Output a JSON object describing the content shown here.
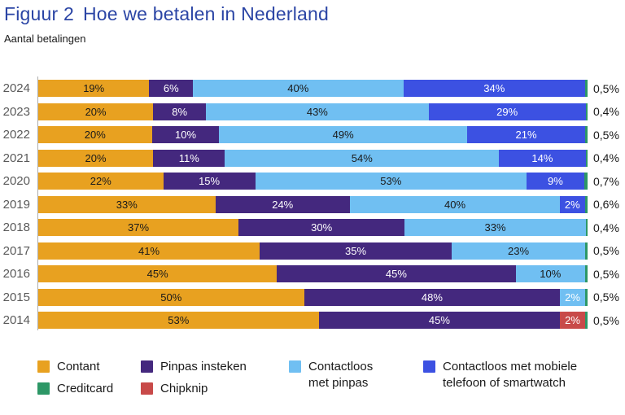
{
  "header": {
    "figure_label": "Figuur 2",
    "title": "Hoe we betalen in Nederland",
    "subtitle": "Aantal betalingen"
  },
  "colors": {
    "title_blue": "#2b45a5",
    "contant": "#e8a120",
    "pinpas_insteken": "#44287e",
    "contactloos_met_pinpas": "#70bff2",
    "contactloos_mobiel": "#3c51e2",
    "creditcard": "#2d9766",
    "chipknip": "#c84a49",
    "year_label": "#595959",
    "axis_line": "#adadad",
    "text_dark": "#1a1a1a"
  },
  "chart_data": {
    "type": "bar",
    "orientation": "horizontal",
    "stacked": true,
    "title": "Figuur 2 Hoe we betalen in Nederland",
    "ylabel_unit": "Aantal betalingen",
    "xlim": [
      0,
      100
    ],
    "value_suffix": "%",
    "grid": false,
    "categories": [
      "2024",
      "2023",
      "2022",
      "2021",
      "2020",
      "2019",
      "2018",
      "2017",
      "2016",
      "2015",
      "2014"
    ],
    "series": [
      {
        "key": "contant",
        "name": "Contant",
        "color": "#e8a120",
        "label_color": "#1a1a1a",
        "inside_labels": true,
        "values": [
          19,
          20,
          20,
          20,
          22,
          33,
          37,
          41,
          45,
          50,
          53
        ]
      },
      {
        "key": "pinpas-insteken",
        "name": "Pinpas insteken",
        "color": "#44287e",
        "label_color": "#ffffff",
        "inside_labels": true,
        "values": [
          6,
          8,
          10,
          11,
          15,
          24,
          30,
          35,
          45,
          48,
          45
        ]
      },
      {
        "key": "contactloos-met-pinpas",
        "name": "Contactloos met pinpas",
        "color": "#70bff2",
        "label_color": "#1a1a1a",
        "inside_labels": true,
        "values": [
          40,
          43,
          49,
          54,
          53,
          40,
          33,
          23,
          10,
          2,
          0
        ]
      },
      {
        "key": "contactloos-mobiel",
        "name": "Contactloos met mobiele telefoon of smartwatch",
        "color": "#3c51e2",
        "label_color": "#ffffff",
        "inside_labels": true,
        "values": [
          34,
          29,
          21,
          14,
          9,
          2,
          0,
          0,
          0,
          0,
          0
        ]
      },
      {
        "key": "chipknip",
        "name": "Chipknip",
        "color": "#c84a49",
        "label_color": "#ffffff",
        "inside_labels": true,
        "values": [
          0,
          0,
          0,
          0,
          0,
          0,
          0,
          0,
          0,
          0,
          2
        ]
      },
      {
        "key": "creditcard",
        "name": "Creditcard",
        "color": "#2d9766",
        "label_color": "#ffffff",
        "inside_labels": false,
        "values": [
          0.5,
          0.4,
          0.5,
          0.4,
          0.7,
          0.6,
          0.4,
          0.5,
          0.5,
          0.5,
          0.5
        ]
      }
    ],
    "outside_labels": {
      "series": "Creditcard",
      "values": [
        "0,5%",
        "0,4%",
        "0,5%",
        "0,4%",
        "0,7%",
        "0,6%",
        "0,4%",
        "0,5%",
        "0,5%",
        "0,5%",
        "0,5%"
      ]
    },
    "legend_position": "bottom"
  },
  "legend": {
    "columns": [
      {
        "items": [
          {
            "label": "Contant",
            "color": "#e8a120"
          },
          {
            "label": "Creditcard",
            "color": "#2d9766"
          }
        ]
      },
      {
        "items": [
          {
            "label": "Pinpas insteken",
            "color": "#44287e"
          },
          {
            "label": "Chipknip",
            "color": "#c84a49"
          }
        ]
      },
      {
        "items": [
          {
            "label": "Contactloos\nmet pinpas",
            "color": "#70bff2"
          }
        ]
      },
      {
        "items": [
          {
            "label": "Contactloos met mobiele\ntelefoon of smartwatch",
            "color": "#3c51e2"
          }
        ]
      }
    ]
  }
}
